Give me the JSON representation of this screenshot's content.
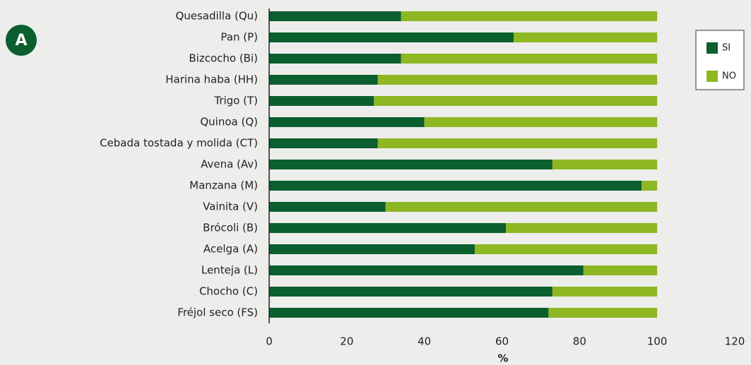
{
  "chart_data": {
    "type": "stacked_barh",
    "annotation": "A",
    "xlabel": "%",
    "categories": [
      "Quesadilla (Qu)",
      "Pan (P)",
      "Bizcocho (Bi)",
      "Harina haba (HH)",
      "Trigo (T)",
      "Quinoa (Q)",
      "Cebada tostada y molida (CT)",
      "Avena (Av)",
      "Manzana (M)",
      "Vainita (V)",
      "Brócoli (B)",
      "Acelga (A)",
      "Lenteja (L)",
      "Chocho (C)",
      "Fréjol seco (FS)"
    ],
    "series": [
      {
        "name": "SI",
        "color": "#0b5e2e",
        "values": [
          34,
          63,
          34,
          28,
          27,
          40,
          28,
          73,
          96,
          30,
          61,
          53,
          81,
          73,
          72
        ]
      },
      {
        "name": "NO",
        "color": "#8db723",
        "values": [
          66,
          37,
          66,
          72,
          73,
          60,
          72,
          27,
          4,
          70,
          39,
          47,
          19,
          27,
          28
        ]
      }
    ],
    "xlim": [
      0,
      120
    ],
    "xticks": [
      0,
      20,
      40,
      60,
      80,
      100,
      120
    ],
    "legend": "upper right",
    "grid": false
  }
}
